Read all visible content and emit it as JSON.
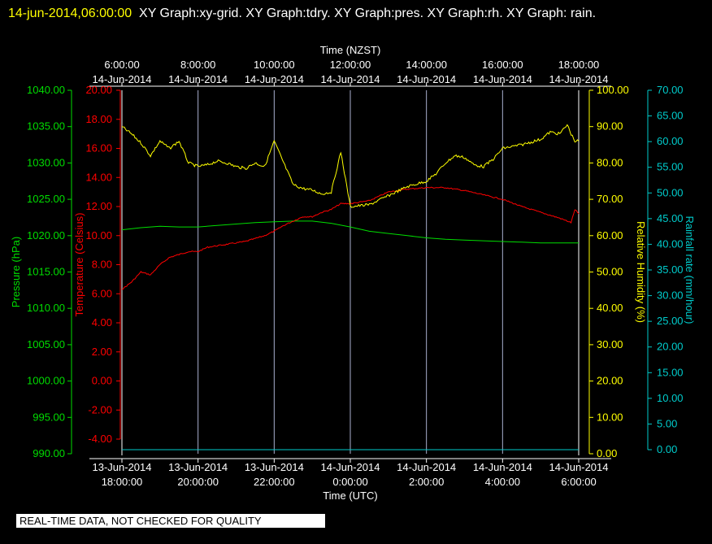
{
  "header": {
    "timestamp": "14-jun-2014,06:00:00",
    "graphs": "XY Graph:xy-grid.  XY Graph:tdry.  XY Graph:pres.  XY Graph:rh.  XY Graph: rain."
  },
  "quality_notice": "REAL-TIME DATA, NOT CHECKED FOR QUALITY",
  "colors": {
    "pressure": "#00dd00",
    "temperature": "#ff0000",
    "humidity": "#ffff00",
    "rainfall": "#00cccc",
    "grid": "#aab0d0",
    "axis_text": "#ffffff"
  },
  "chart_data": {
    "type": "line",
    "x_top_label": "Time (NZST)",
    "x_bottom_label": "Time (UTC)",
    "x_range_utc_hours": [
      18,
      30
    ],
    "x_ticks_utc_hours": [
      18,
      20,
      22,
      24,
      26,
      28,
      30
    ],
    "top_ticks": [
      [
        "6:00:00",
        "14-Jun-2014"
      ],
      [
        "8:00:00",
        "14-Jun-2014"
      ],
      [
        "10:00:00",
        "14-Jun-2014"
      ],
      [
        "12:00:00",
        "14-Jun-2014"
      ],
      [
        "14:00:00",
        "14-Jun-2014"
      ],
      [
        "16:00:00",
        "14-Jun-2014"
      ],
      [
        "18:00:00",
        "14-Jun-2014"
      ]
    ],
    "bottom_ticks": [
      [
        "13-Jun-2014",
        "18:00:00"
      ],
      [
        "13-Jun-2014",
        "20:00:00"
      ],
      [
        "13-Jun-2014",
        "22:00:00"
      ],
      [
        "14-Jun-2014",
        "0:00:00"
      ],
      [
        "14-Jun-2014",
        "2:00:00"
      ],
      [
        "14-Jun-2014",
        "4:00:00"
      ],
      [
        "14-Jun-2014",
        "6:00:00"
      ]
    ],
    "axes": {
      "pressure": {
        "label": "Pressure (hPa)",
        "range": [
          990,
          1040
        ],
        "ticks": [
          "1040.00",
          "1035.00",
          "1030.00",
          "1025.00",
          "1020.00",
          "1015.00",
          "1010.00",
          "1005.00",
          "1000.00",
          "995.00",
          "990.00"
        ]
      },
      "temperature": {
        "label": "Temperature (Celsius)",
        "range": [
          -4,
          20
        ],
        "ticks": [
          "20.00",
          "18.00",
          "16.00",
          "14.00",
          "12.00",
          "10.00",
          "8.00",
          "6.00",
          "4.00",
          "2.00",
          "0.00",
          "-2.00",
          "-4.00"
        ]
      },
      "humidity": {
        "label": "Relative Humidity (%)",
        "range": [
          0,
          100
        ],
        "ticks": [
          "100.00",
          "90.00",
          "80.00",
          "70.00",
          "60.00",
          "50.00",
          "40.00",
          "30.00",
          "20.00",
          "10.00",
          "0.00"
        ]
      },
      "rainfall": {
        "label": "Rainfall rate (mm/hour)",
        "range": [
          0,
          70
        ],
        "ticks": [
          "70.00",
          "65.00",
          "60.00",
          "55.00",
          "50.00",
          "45.00",
          "40.00",
          "35.00",
          "30.00",
          "25.00",
          "20.00",
          "15.00",
          "10.00",
          "5.00",
          "0.00"
        ]
      }
    },
    "series": [
      {
        "name": "Pressure",
        "axis": "pressure",
        "x": [
          18.0,
          18.5,
          19.0,
          19.5,
          20.0,
          20.5,
          21.0,
          21.5,
          22.0,
          22.5,
          23.0,
          23.5,
          24.0,
          24.5,
          25.0,
          25.5,
          26.0,
          26.5,
          27.0,
          27.5,
          28.0,
          28.5,
          29.0,
          29.5,
          30.0
        ],
        "y": [
          1020.8,
          1021.1,
          1021.3,
          1021.2,
          1021.2,
          1021.4,
          1021.6,
          1021.8,
          1021.9,
          1022.0,
          1022.0,
          1021.7,
          1021.2,
          1020.6,
          1020.3,
          1020.0,
          1019.7,
          1019.5,
          1019.4,
          1019.3,
          1019.2,
          1019.1,
          1019.0,
          1019.0,
          1019.0
        ]
      },
      {
        "name": "Temperature",
        "axis": "temperature",
        "x": [
          18.0,
          18.25,
          18.5,
          18.75,
          19.0,
          19.25,
          19.5,
          19.75,
          20.0,
          20.25,
          20.5,
          20.75,
          21.0,
          21.25,
          21.5,
          21.75,
          22.0,
          22.25,
          22.5,
          22.75,
          23.0,
          23.25,
          23.5,
          23.75,
          24.0,
          24.5,
          25.0,
          25.5,
          26.0,
          26.5,
          27.0,
          27.5,
          28.0,
          28.5,
          29.0,
          29.5,
          29.8,
          29.9,
          30.0
        ],
        "y": [
          6.3,
          6.8,
          7.5,
          7.3,
          8.0,
          8.5,
          8.7,
          8.9,
          8.9,
          9.2,
          9.3,
          9.4,
          9.5,
          9.6,
          9.8,
          10.0,
          10.3,
          10.7,
          11.0,
          11.3,
          11.3,
          11.6,
          11.8,
          12.2,
          12.2,
          12.4,
          13.0,
          13.2,
          13.3,
          13.3,
          13.1,
          12.8,
          12.5,
          12.0,
          11.6,
          11.2,
          10.9,
          11.8,
          11.5
        ]
      },
      {
        "name": "Relative Humidity",
        "axis": "humidity",
        "x": [
          18.0,
          18.25,
          18.5,
          18.75,
          19.0,
          19.25,
          19.5,
          19.75,
          20.0,
          20.25,
          20.5,
          20.75,
          21.0,
          21.25,
          21.5,
          21.75,
          22.0,
          22.25,
          22.5,
          22.75,
          23.0,
          23.25,
          23.5,
          23.75,
          24.0,
          24.5,
          25.0,
          25.5,
          26.0,
          26.25,
          26.5,
          26.75,
          27.0,
          27.25,
          27.5,
          27.75,
          28.0,
          28.5,
          29.0,
          29.25,
          29.5,
          29.7,
          29.8,
          29.9,
          30.0
        ],
        "y": [
          90.0,
          88.0,
          85.5,
          82.0,
          86.0,
          84.0,
          86.0,
          80.0,
          79.0,
          79.5,
          80.5,
          80.0,
          79.0,
          78.5,
          80.0,
          79.0,
          86.0,
          80.0,
          74.0,
          73.0,
          72.5,
          71.5,
          72.0,
          83.0,
          68.0,
          68.5,
          71.0,
          73.5,
          75.0,
          77.0,
          80.0,
          82.0,
          81.5,
          79.5,
          79.0,
          81.0,
          84.0,
          85.0,
          86.5,
          88.5,
          88.0,
          90.5,
          88.0,
          86.0,
          86.0
        ]
      },
      {
        "name": "Rainfall rate",
        "axis": "rainfall",
        "x": [
          18,
          30
        ],
        "y": [
          0,
          0
        ]
      }
    ]
  }
}
